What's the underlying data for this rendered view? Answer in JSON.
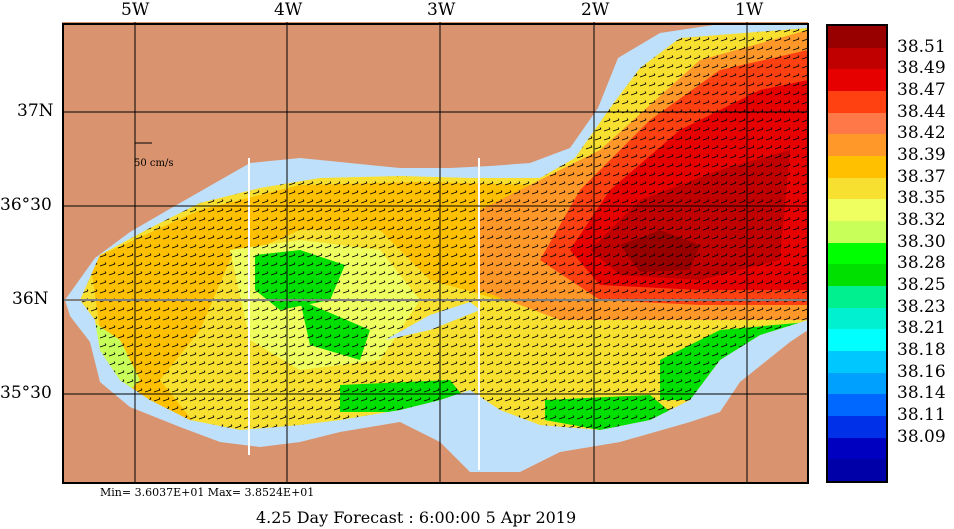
{
  "map": {
    "lon_labels": [
      "5W",
      "4W",
      "3W",
      "2W",
      "1W"
    ],
    "lat_labels": [
      "37N",
      "36°30",
      "36N",
      "35°30"
    ],
    "scale_label": "50 cm/s",
    "colors": {
      "land": "#d9936f",
      "ocean": "#bfe0fa",
      "grid": "#000000"
    }
  },
  "colorbar": {
    "labels": [
      "38.51",
      "38.49",
      "38.47",
      "38.44",
      "38.42",
      "38.39",
      "38.37",
      "38.35",
      "38.32",
      "38.30",
      "38.28",
      "38.25",
      "38.23",
      "38.21",
      "38.18",
      "38.16",
      "38.14",
      "38.11",
      "38.09"
    ],
    "colors": [
      "#980000",
      "#c00000",
      "#e60000",
      "#ff4010",
      "#ff7848",
      "#ff9828",
      "#ffc000",
      "#f8e030",
      "#f0ff60",
      "#c8ff58",
      "#00ff00",
      "#00e000",
      "#00f090",
      "#00f0d0",
      "#00ffff",
      "#00c8ff",
      "#00a0ff",
      "#0068ff",
      "#0030e8",
      "#0000c0",
      "#0000a8"
    ]
  },
  "footer": {
    "minmax": "Min= 3.6037E+01  Max= 3.8524E+01",
    "forecast": "4.25 Day Forecast :  6:00:00   5 Apr 2019"
  }
}
